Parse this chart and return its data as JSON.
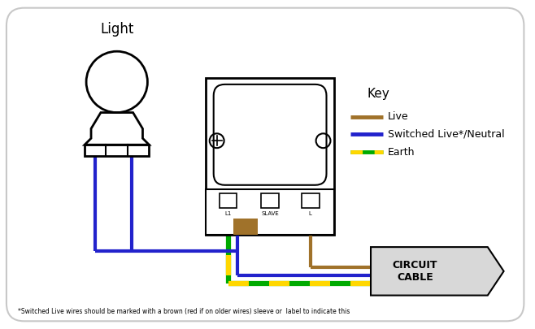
{
  "background_color": "#ffffff",
  "border_color": "#c8c8c8",
  "live_color": "#a0722a",
  "blue_color": "#2222cc",
  "earth_green": "#00aa00",
  "earth_yellow": "#FFD700",
  "circuit_label": "CIRCUIT\nCABLE",
  "key_title": "Key",
  "key_live": "Live",
  "key_switched": "Switched Live*/Neutral",
  "key_earth": "Earth",
  "footnote": "*Switched Live wires should be marked with a brown (red if on older wires) sleeve or  label to indicate this",
  "light_label": "Light",
  "terminal_labels": [
    "L1",
    "SLAVE",
    "L"
  ]
}
